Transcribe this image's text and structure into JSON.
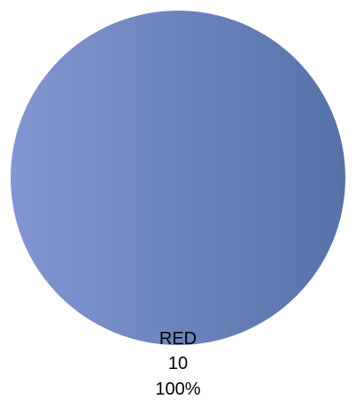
{
  "chart_data": {
    "type": "pie",
    "title": "",
    "slices": [
      {
        "label": "RED",
        "value": 10,
        "value_label": "10",
        "percent_label": "100%",
        "color_start": "#8296D2",
        "color_end": "#5672A8"
      }
    ]
  }
}
